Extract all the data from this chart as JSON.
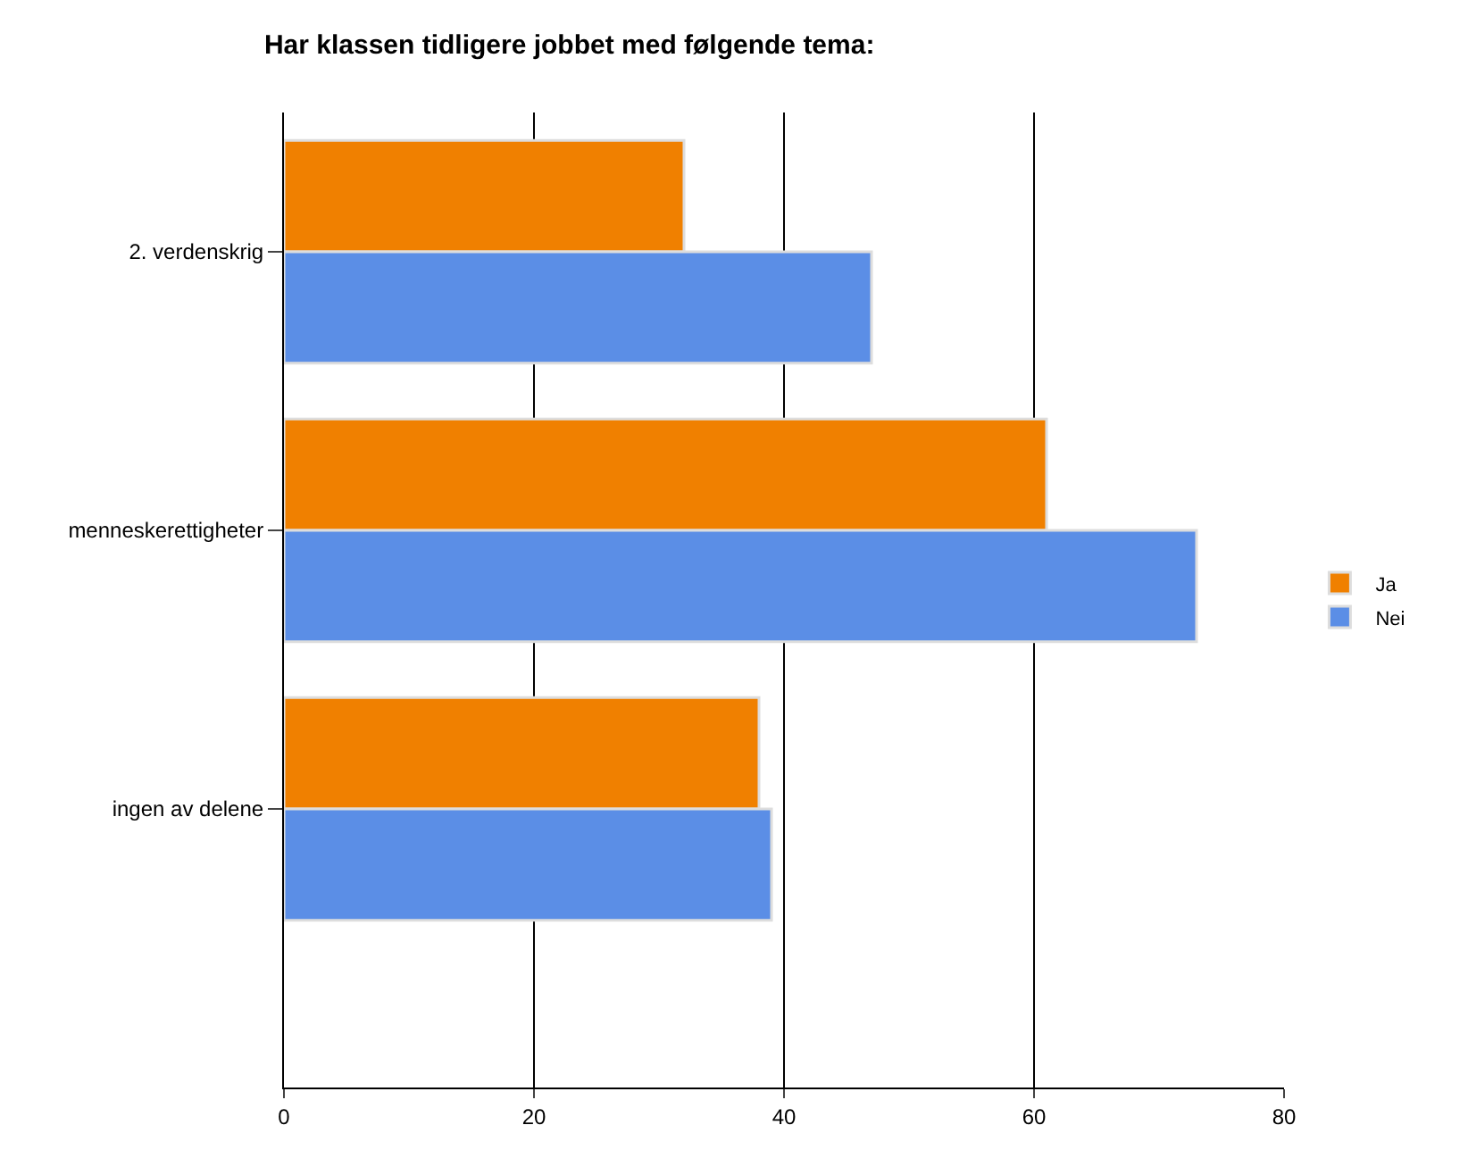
{
  "chart_data": {
    "type": "bar",
    "orientation": "horizontal",
    "title": "Har klassen tidligere jobbet med følgende tema:",
    "categories": [
      "2. verdenskrig",
      "menneskerettigheter",
      "ingen av delene"
    ],
    "series": [
      {
        "name": "Ja",
        "color": "#f08000",
        "values": [
          32,
          61,
          38
        ]
      },
      {
        "name": "Nei",
        "color": "#5b8ee6",
        "values": [
          47,
          73,
          39
        ]
      }
    ],
    "xlim": [
      0,
      80
    ],
    "xticks": [
      0,
      20,
      40,
      60,
      80
    ],
    "grid": "x",
    "legend": "right"
  }
}
